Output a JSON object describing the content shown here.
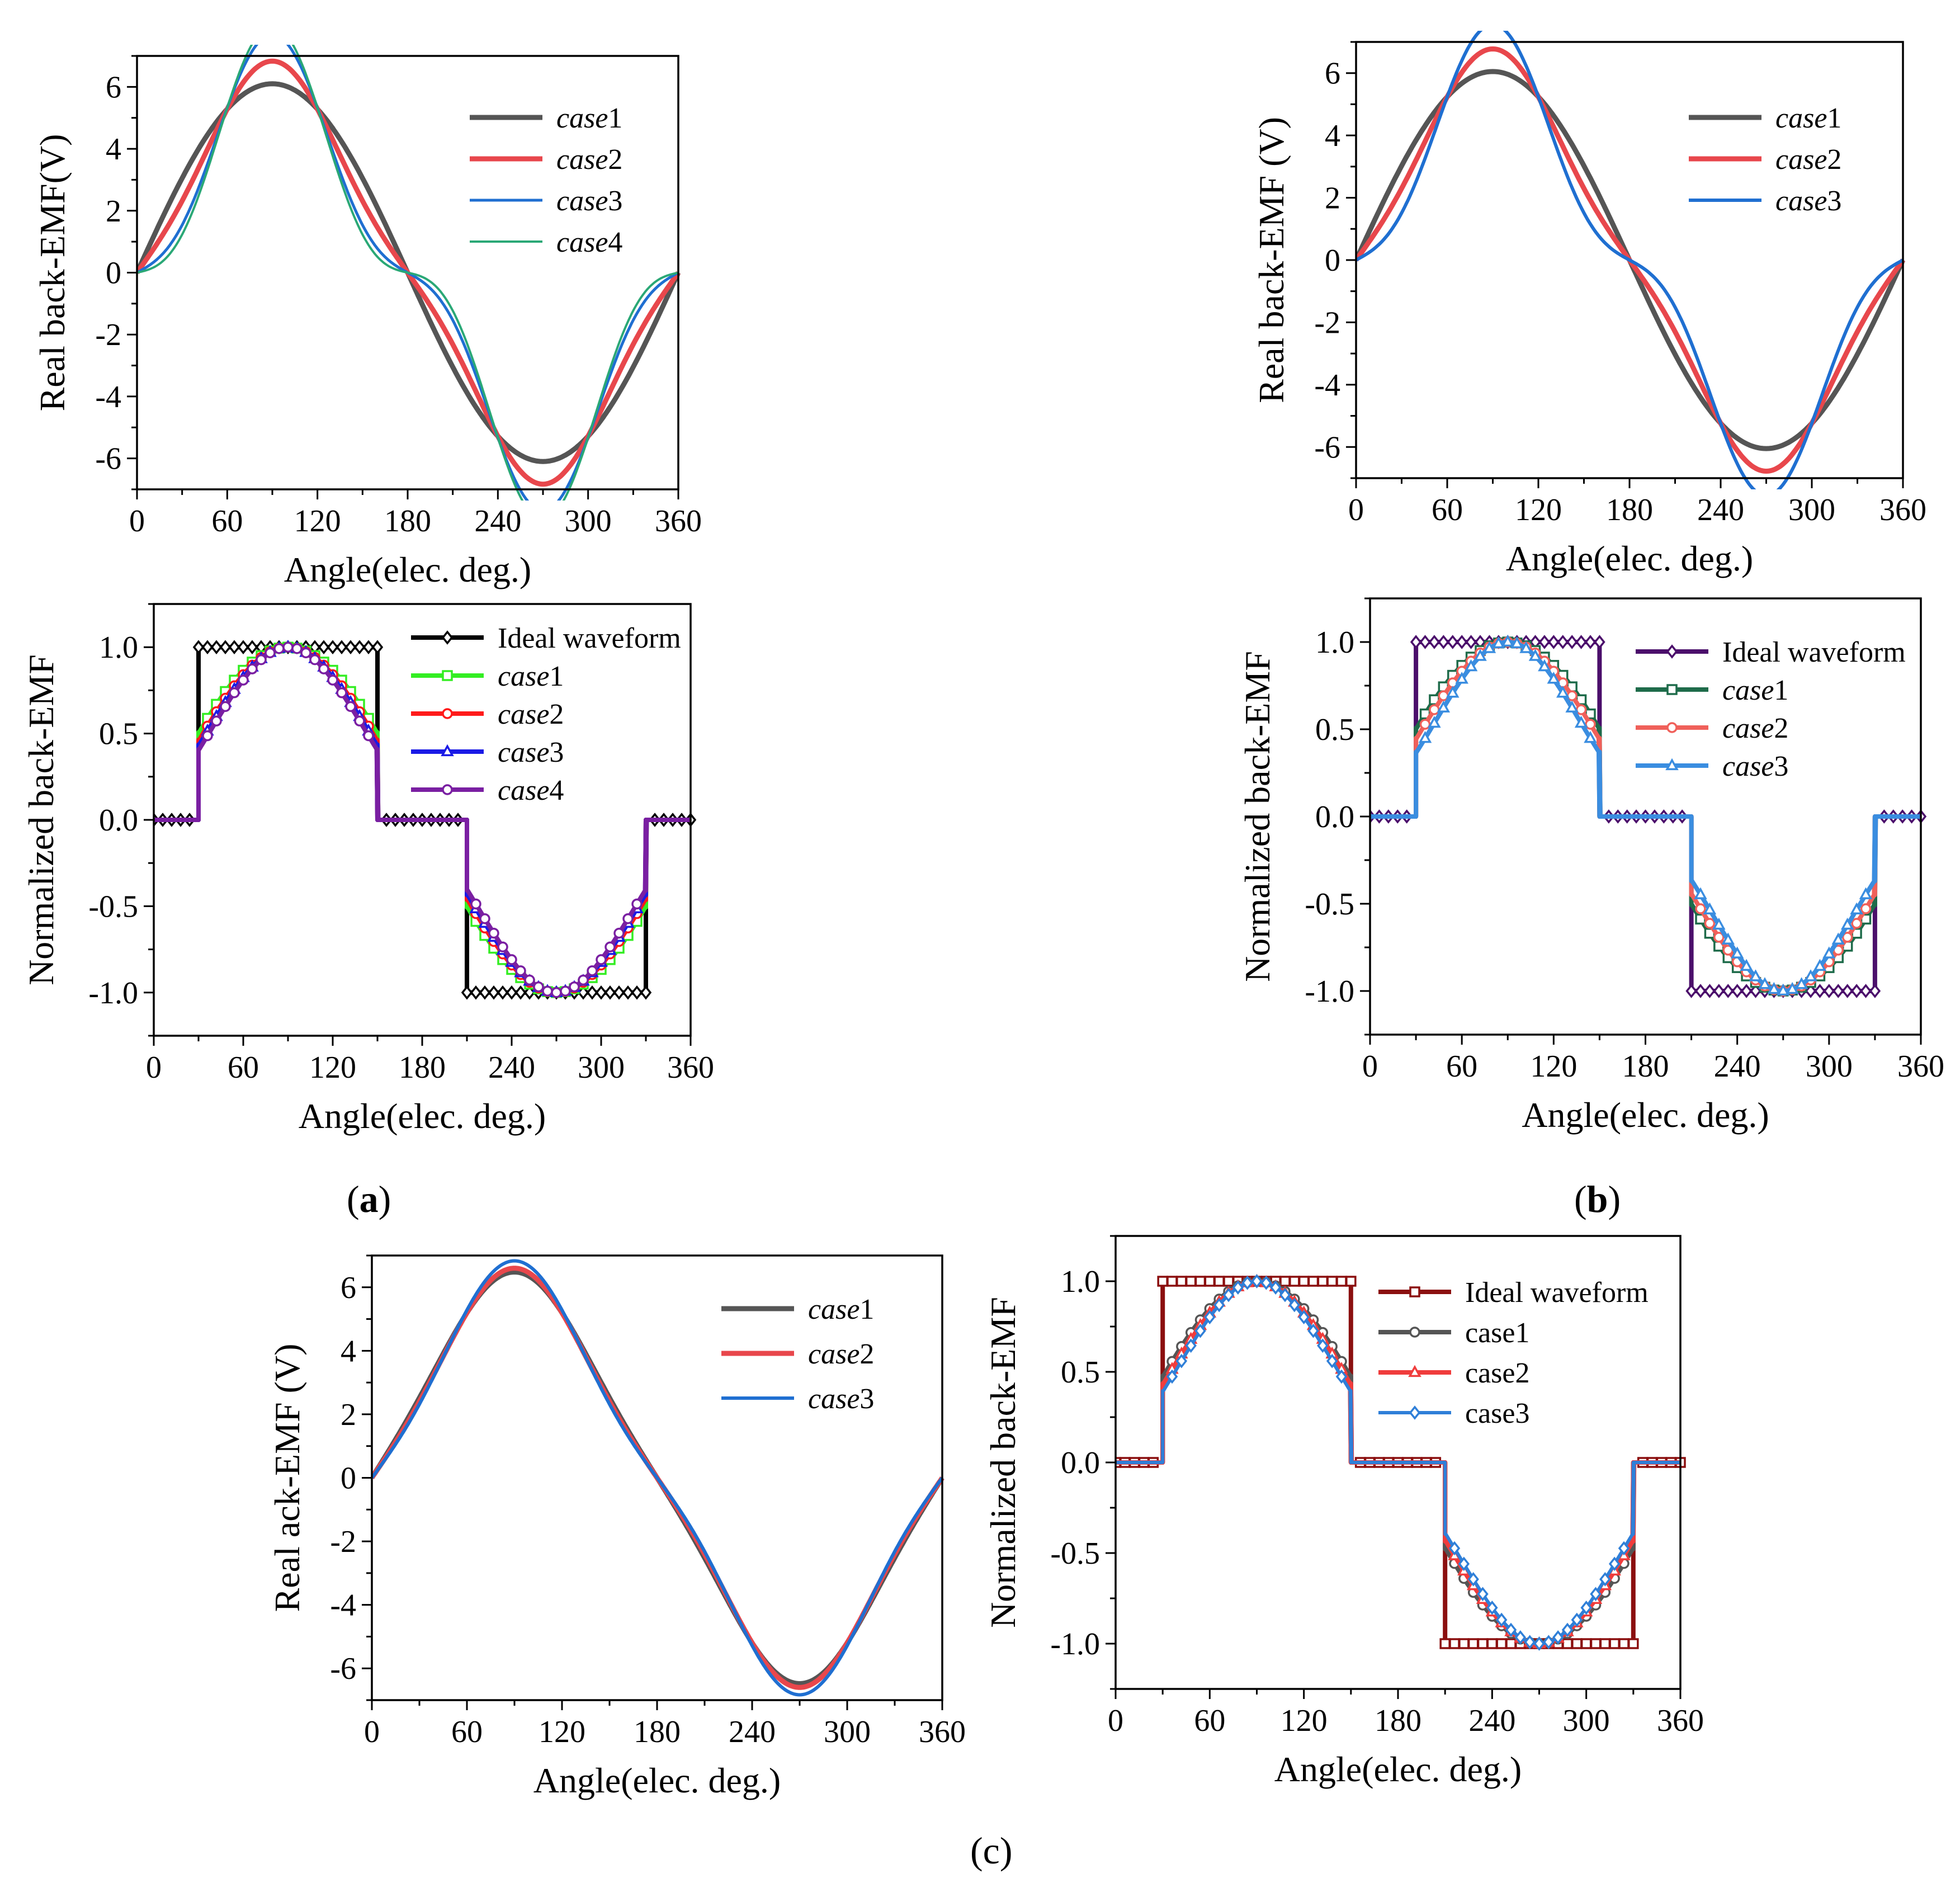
{
  "panel_labels": [
    {
      "id": "a",
      "open": "(",
      "letter": "a",
      "close": ")"
    },
    {
      "id": "b",
      "open": "(",
      "letter": "b",
      "close": ")"
    },
    {
      "id": "c",
      "open": "(",
      "letter": "c",
      "close": ")"
    }
  ],
  "chart_data": [
    {
      "id": "a-real",
      "type": "line",
      "xlabel": "Angle(elec. deg.)",
      "ylabel": "Real back-EMF(V)",
      "xlim": [
        0,
        360
      ],
      "ylim": [
        -7,
        7
      ],
      "xticks": [
        0,
        60,
        120,
        180,
        240,
        300,
        360
      ],
      "yticks": [
        -6,
        -4,
        -2,
        0,
        2,
        4,
        6
      ],
      "series": [
        {
          "name": "case1",
          "italic": "case",
          "suffix": "1",
          "color": "#555555",
          "amplitude": 6.1,
          "harm3": 0.0,
          "width": 9
        },
        {
          "name": "case2",
          "italic": "case",
          "suffix": "2",
          "color": "#e8474c",
          "amplitude": 6.1,
          "harm3": 0.12,
          "width": 9
        },
        {
          "name": "case3",
          "italic": "case",
          "suffix": "3",
          "color": "#1f6fd1",
          "amplitude": 6.15,
          "harm3": 0.25,
          "width": 5
        },
        {
          "name": "case4",
          "italic": "case",
          "suffix": "4",
          "color": "#2aa876",
          "amplitude": 6.15,
          "harm3": 0.3,
          "width": 4
        }
      ]
    },
    {
      "id": "b-real",
      "type": "line",
      "xlabel": "Angle(elec. deg.)",
      "ylabel": "Real back-EMF (V)",
      "xlim": [
        0,
        360
      ],
      "ylim": [
        -7,
        7
      ],
      "xticks": [
        0,
        60,
        120,
        180,
        240,
        300,
        360
      ],
      "yticks": [
        -6,
        -4,
        -2,
        0,
        2,
        4,
        6
      ],
      "series": [
        {
          "name": "case1",
          "italic": "case",
          "suffix": "1",
          "color": "#555555",
          "amplitude": 6.05,
          "harm3": 0.0,
          "width": 9
        },
        {
          "name": "case2",
          "italic": "case",
          "suffix": "2",
          "color": "#e8474c",
          "amplitude": 6.05,
          "harm3": 0.12,
          "width": 9
        },
        {
          "name": "case3",
          "italic": "case",
          "suffix": "3",
          "color": "#1f6fd1",
          "amplitude": 6.05,
          "harm3": 0.25,
          "width": 6
        }
      ]
    },
    {
      "id": "a-norm",
      "type": "line",
      "xlabel": "Angle(elec. deg.)",
      "ylabel": "Normalized back-EMF",
      "xlim": [
        0,
        360
      ],
      "ylim": [
        -1.25,
        1.25
      ],
      "xticks": [
        0,
        60,
        120,
        180,
        240,
        300,
        360
      ],
      "yticks": [
        -1.0,
        -0.5,
        0.0,
        0.5,
        1.0
      ],
      "ideal_x": [
        0,
        30,
        30,
        150,
        150,
        210,
        210,
        330,
        330,
        360
      ],
      "ideal_y": [
        0,
        0,
        1,
        1,
        0,
        0,
        -1,
        -1,
        0,
        0
      ],
      "series": [
        {
          "name": "Ideal waveform",
          "italic": "",
          "suffix": "Ideal waveform",
          "color": "#000000",
          "marker": "diamond",
          "kind": "ideal",
          "width": 8
        },
        {
          "name": "case1",
          "italic": "case",
          "suffix": "1",
          "color": "#33ee22",
          "marker": "square",
          "kind": "sine",
          "amplitude": 1.0,
          "harm3": 0.0,
          "width": 8
        },
        {
          "name": "case2",
          "italic": "case",
          "suffix": "2",
          "color": "#ff1a1a",
          "marker": "circle",
          "kind": "sine",
          "amplitude": 1.0,
          "harm3": 0.03,
          "width": 8
        },
        {
          "name": "case3",
          "italic": "case",
          "suffix": "3",
          "color": "#1a1ae6",
          "marker": "triangle",
          "kind": "sine",
          "amplitude": 1.0,
          "harm3": 0.05,
          "width": 8
        },
        {
          "name": "case4",
          "italic": "case",
          "suffix": "4",
          "color": "#7a1fa2",
          "marker": "circle",
          "kind": "sine",
          "amplitude": 1.0,
          "harm3": 0.07,
          "width": 8
        }
      ]
    },
    {
      "id": "b-norm",
      "type": "line",
      "xlabel": "Angle(elec. deg.)",
      "ylabel": "Normalized back-EMF",
      "xlim": [
        0,
        360
      ],
      "ylim": [
        -1.25,
        1.25
      ],
      "xticks": [
        0,
        60,
        120,
        180,
        240,
        300,
        360
      ],
      "yticks": [
        -1.0,
        -0.5,
        0.0,
        0.5,
        1.0
      ],
      "ideal_x": [
        0,
        30,
        30,
        150,
        150,
        210,
        210,
        330,
        330,
        360
      ],
      "ideal_y": [
        0,
        0,
        1,
        1,
        0,
        0,
        -1,
        -1,
        0,
        0
      ],
      "series": [
        {
          "name": "Ideal waveform",
          "italic": "",
          "suffix": "Ideal waveform",
          "color": "#4b0f6b",
          "marker": "diamond",
          "kind": "ideal",
          "width": 8
        },
        {
          "name": "case1",
          "italic": "case",
          "suffix": "1",
          "color": "#1e6b4a",
          "marker": "square",
          "kind": "sine",
          "amplitude": 1.0,
          "harm3": 0.0,
          "width": 8
        },
        {
          "name": "case2",
          "italic": "case",
          "suffix": "2",
          "color": "#f0605a",
          "marker": "circle",
          "kind": "sine",
          "amplitude": 1.0,
          "harm3": 0.04,
          "width": 8
        },
        {
          "name": "case3",
          "italic": "case",
          "suffix": "3",
          "color": "#3a8de0",
          "marker": "triangle",
          "kind": "sine",
          "amplitude": 1.0,
          "harm3": 0.1,
          "width": 8
        }
      ]
    },
    {
      "id": "c-real",
      "type": "line",
      "xlabel": "Angle(elec. deg.)",
      "ylabel": "Real ack-EMF (V)",
      "xlim": [
        0,
        360
      ],
      "ylim": [
        -7,
        7
      ],
      "xticks": [
        0,
        60,
        120,
        180,
        240,
        300,
        360
      ],
      "yticks": [
        -6,
        -4,
        -2,
        0,
        2,
        4,
        6
      ],
      "series": [
        {
          "name": "case1",
          "italic": "case",
          "suffix": "1",
          "color": "#555555",
          "amplitude": 6.0,
          "harm3": 0.08,
          "width": 9
        },
        {
          "name": "case2",
          "italic": "case",
          "suffix": "2",
          "color": "#e8474c",
          "amplitude": 6.0,
          "harm3": 0.1,
          "width": 9
        },
        {
          "name": "case3",
          "italic": "case",
          "suffix": "3",
          "color": "#1f6fd1",
          "amplitude": 6.1,
          "harm3": 0.12,
          "width": 6
        }
      ]
    },
    {
      "id": "c-norm",
      "type": "line",
      "xlabel": "Angle(elec. deg.)",
      "ylabel": "Normalized back-EMF",
      "xlim": [
        0,
        360
      ],
      "ylim": [
        -1.25,
        1.25
      ],
      "xticks": [
        0,
        60,
        120,
        180,
        240,
        300,
        360
      ],
      "yticks": [
        -1.0,
        -0.5,
        0.0,
        0.5,
        1.0
      ],
      "ideal_x": [
        0,
        30,
        30,
        150,
        150,
        210,
        210,
        330,
        330,
        360
      ],
      "ideal_y": [
        0,
        0,
        1,
        1,
        0,
        0,
        -1,
        -1,
        0,
        0
      ],
      "series": [
        {
          "name": "Ideal waveform",
          "italic": "",
          "suffix": "Ideal waveform",
          "color": "#8b0f0f",
          "marker": "square",
          "kind": "ideal",
          "width": 8
        },
        {
          "name": "case1",
          "italic": "",
          "suffix": "case1",
          "color": "#555555",
          "marker": "circle",
          "kind": "sine",
          "amplitude": 1.0,
          "harm3": 0.02,
          "width": 8
        },
        {
          "name": "case2",
          "italic": "",
          "suffix": "case2",
          "color": "#f03c3c",
          "marker": "triangle",
          "kind": "sine",
          "amplitude": 1.0,
          "harm3": 0.05,
          "width": 8
        },
        {
          "name": "case3",
          "italic": "",
          "suffix": "case3",
          "color": "#2f7fd8",
          "marker": "diamond",
          "kind": "sine",
          "amplitude": 1.0,
          "harm3": 0.08,
          "width": 6
        }
      ]
    }
  ]
}
